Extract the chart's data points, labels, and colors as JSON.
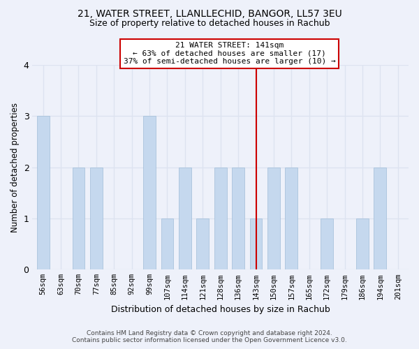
{
  "title_line1": "21, WATER STREET, LLANLLECHID, BANGOR, LL57 3EU",
  "title_line2": "Size of property relative to detached houses in Rachub",
  "xlabel": "Distribution of detached houses by size in Rachub",
  "ylabel": "Number of detached properties",
  "categories": [
    "56sqm",
    "63sqm",
    "70sqm",
    "77sqm",
    "85sqm",
    "92sqm",
    "99sqm",
    "107sqm",
    "114sqm",
    "121sqm",
    "128sqm",
    "136sqm",
    "143sqm",
    "150sqm",
    "157sqm",
    "165sqm",
    "172sqm",
    "179sqm",
    "186sqm",
    "194sqm",
    "201sqm"
  ],
  "values": [
    3,
    0,
    2,
    2,
    0,
    0,
    3,
    1,
    2,
    1,
    2,
    2,
    1,
    2,
    2,
    0,
    1,
    0,
    1,
    2,
    0
  ],
  "bar_color": "#c5d8ee",
  "bar_edge_color": "#a0bcd8",
  "vline_x_index": 12,
  "vline_color": "#cc0000",
  "annotation_text": "21 WATER STREET: 141sqm\n← 63% of detached houses are smaller (17)\n37% of semi-detached houses are larger (10) →",
  "annotation_box_facecolor": "#ffffff",
  "annotation_box_edgecolor": "#cc0000",
  "ylim": [
    0,
    4
  ],
  "yticks": [
    0,
    1,
    2,
    3,
    4
  ],
  "background_color": "#eef1fa",
  "grid_color": "#dde3f0",
  "footnote_line1": "Contains HM Land Registry data © Crown copyright and database right 2024.",
  "footnote_line2": "Contains public sector information licensed under the Open Government Licence v3.0."
}
